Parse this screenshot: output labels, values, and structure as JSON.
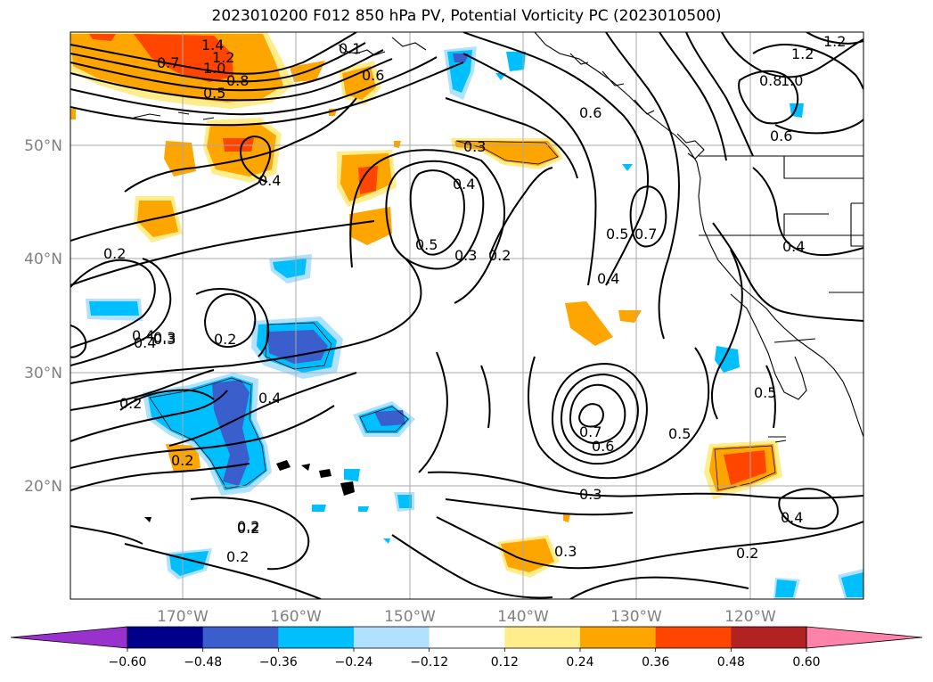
{
  "title": "2023010200 F012 850 hPa PV, Potential Vorticity PC (2023010500)",
  "lon_labels": [
    "170°W",
    "160°W",
    "150°W",
    "140°W",
    "130°W",
    "120°W"
  ],
  "lat_labels": [
    "50°N",
    "40°N",
    "30°N",
    "20°N"
  ],
  "colorbar": {
    "ticks": [
      "-0.60",
      "-0.48",
      "-0.36",
      "-0.24",
      "-0.12",
      "0.12",
      "0.24",
      "0.36",
      "0.48",
      "0.60"
    ],
    "colors": [
      "#9932cc",
      "#00008b",
      "#3a5fcd",
      "#00bfff",
      "#b0e2ff",
      "#ffffff",
      "#ffec8b",
      "#ffa500",
      "#ff4500",
      "#b22222",
      "#ff82ab"
    ]
  },
  "contour_labels": [
    "1.4",
    "1.2",
    "1.0",
    "0.8",
    "0.7",
    "0.5",
    "0.1",
    "0.6",
    "0.4",
    "0.3",
    "0.4",
    "0.5",
    "0.3",
    "0.2",
    "0.6",
    "0.5",
    "0.7",
    "0.4",
    "1.2",
    "1.0",
    "0.8",
    "0.6",
    "1.2",
    "0.4",
    "0.2",
    "0.3",
    "0.4",
    "0.2",
    "0.4",
    "0.2",
    "0.3",
    "0.7",
    "0.6",
    "0.5",
    "0.5",
    "0.3",
    "0.2",
    "0.2",
    "0.2",
    "0.3",
    "0.2",
    "0.4",
    "0.4",
    "0.2"
  ]
}
